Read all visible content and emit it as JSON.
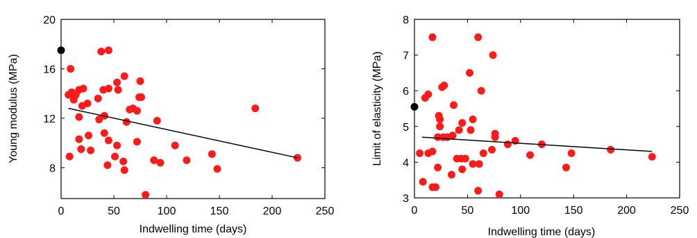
{
  "chart_data": [
    {
      "type": "scatter",
      "xlabel": "Indwelling time (days)",
      "ylabel": "Young modulus (MPa)",
      "xlim": [
        0,
        250
      ],
      "ylim": [
        5.5,
        20
      ],
      "xticks": [
        0,
        50,
        100,
        150,
        200,
        250
      ],
      "yticks": [
        8,
        12,
        16,
        20
      ],
      "grid": false,
      "colors": {
        "points": "#ff1a1a",
        "initial_point": "#000000",
        "trend": "#000000"
      },
      "initial_point": {
        "x": 0,
        "y": 17.5
      },
      "trend_line": {
        "x": [
          7,
          224
        ],
        "y": [
          12.8,
          8.8
        ]
      },
      "points": [
        {
          "x": 7,
          "y": 13.9
        },
        {
          "x": 10,
          "y": 14.1
        },
        {
          "x": 14,
          "y": 13.9
        },
        {
          "x": 17,
          "y": 14.3
        },
        {
          "x": 21,
          "y": 14.4
        },
        {
          "x": 12,
          "y": 13.5
        },
        {
          "x": 20,
          "y": 13.0
        },
        {
          "x": 25,
          "y": 13.2
        },
        {
          "x": 9,
          "y": 16.0
        },
        {
          "x": 35,
          "y": 13.6
        },
        {
          "x": 40,
          "y": 14.3
        },
        {
          "x": 45,
          "y": 14.4
        },
        {
          "x": 53,
          "y": 14.9
        },
        {
          "x": 54,
          "y": 14.3
        },
        {
          "x": 60,
          "y": 15.4
        },
        {
          "x": 75,
          "y": 15.0
        },
        {
          "x": 74,
          "y": 13.7
        },
        {
          "x": 76,
          "y": 13.7
        },
        {
          "x": 38,
          "y": 17.4
        },
        {
          "x": 45,
          "y": 17.5
        },
        {
          "x": 17,
          "y": 12.1
        },
        {
          "x": 41,
          "y": 12.2
        },
        {
          "x": 65,
          "y": 12.7
        },
        {
          "x": 68,
          "y": 12.8
        },
        {
          "x": 72,
          "y": 12.6
        },
        {
          "x": 62,
          "y": 11.7
        },
        {
          "x": 36,
          "y": 11.9
        },
        {
          "x": 91,
          "y": 11.8
        },
        {
          "x": 41,
          "y": 10.8
        },
        {
          "x": 17,
          "y": 10.3
        },
        {
          "x": 26,
          "y": 10.6
        },
        {
          "x": 45,
          "y": 10.2
        },
        {
          "x": 53,
          "y": 9.8
        },
        {
          "x": 72,
          "y": 10.1
        },
        {
          "x": 19,
          "y": 9.5
        },
        {
          "x": 28,
          "y": 9.4
        },
        {
          "x": 51,
          "y": 8.9
        },
        {
          "x": 8,
          "y": 8.9
        },
        {
          "x": 59,
          "y": 8.5
        },
        {
          "x": 88,
          "y": 8.6
        },
        {
          "x": 94,
          "y": 8.4
        },
        {
          "x": 44,
          "y": 8.2
        },
        {
          "x": 60,
          "y": 7.8
        },
        {
          "x": 108,
          "y": 9.8
        },
        {
          "x": 119,
          "y": 8.6
        },
        {
          "x": 143,
          "y": 9.1
        },
        {
          "x": 148,
          "y": 7.9
        },
        {
          "x": 184,
          "y": 12.8
        },
        {
          "x": 224,
          "y": 8.8
        },
        {
          "x": 80,
          "y": 5.8
        }
      ]
    },
    {
      "type": "scatter",
      "xlabel": "Indwelling time (days)",
      "ylabel": "Limit of elasticity (MPa)",
      "xlim": [
        0,
        250
      ],
      "ylim": [
        3,
        8
      ],
      "xticks": [
        0,
        50,
        100,
        150,
        200,
        250
      ],
      "yticks": [
        3,
        4,
        5,
        6,
        7,
        8
      ],
      "grid": false,
      "colors": {
        "points": "#ff1a1a",
        "initial_point": "#000000",
        "trend": "#000000"
      },
      "initial_point": {
        "x": 0,
        "y": 5.55
      },
      "trend_line": {
        "x": [
          7,
          224
        ],
        "y": [
          4.7,
          4.3
        ]
      },
      "points": [
        {
          "x": 17,
          "y": 7.5
        },
        {
          "x": 60,
          "y": 7.5
        },
        {
          "x": 74,
          "y": 7.0
        },
        {
          "x": 52,
          "y": 6.5
        },
        {
          "x": 26,
          "y": 6.1
        },
        {
          "x": 28,
          "y": 6.15
        },
        {
          "x": 13,
          "y": 5.9
        },
        {
          "x": 63,
          "y": 6.0
        },
        {
          "x": 10,
          "y": 5.8
        },
        {
          "x": 37,
          "y": 5.6
        },
        {
          "x": 23,
          "y": 5.3
        },
        {
          "x": 24,
          "y": 5.2
        },
        {
          "x": 24,
          "y": 5.0
        },
        {
          "x": 45,
          "y": 5.1
        },
        {
          "x": 55,
          "y": 5.2
        },
        {
          "x": 42,
          "y": 4.9
        },
        {
          "x": 53,
          "y": 4.9
        },
        {
          "x": 22,
          "y": 4.7
        },
        {
          "x": 27,
          "y": 4.7
        },
        {
          "x": 31,
          "y": 4.7
        },
        {
          "x": 36,
          "y": 4.75
        },
        {
          "x": 76,
          "y": 4.8
        },
        {
          "x": 76,
          "y": 4.7
        },
        {
          "x": 5,
          "y": 4.25
        },
        {
          "x": 13,
          "y": 4.25
        },
        {
          "x": 17,
          "y": 4.3
        },
        {
          "x": 40,
          "y": 4.1
        },
        {
          "x": 44,
          "y": 4.1
        },
        {
          "x": 48,
          "y": 4.1
        },
        {
          "x": 22,
          "y": 3.85
        },
        {
          "x": 35,
          "y": 3.65
        },
        {
          "x": 55,
          "y": 3.95
        },
        {
          "x": 61,
          "y": 3.95
        },
        {
          "x": 65,
          "y": 4.25
        },
        {
          "x": 73,
          "y": 4.35
        },
        {
          "x": 45,
          "y": 3.8
        },
        {
          "x": 88,
          "y": 4.5
        },
        {
          "x": 95,
          "y": 4.6
        },
        {
          "x": 8,
          "y": 3.45
        },
        {
          "x": 17,
          "y": 3.3
        },
        {
          "x": 20,
          "y": 3.3
        },
        {
          "x": 60,
          "y": 3.2
        },
        {
          "x": 80,
          "y": 3.1
        },
        {
          "x": 109,
          "y": 4.2
        },
        {
          "x": 120,
          "y": 4.5
        },
        {
          "x": 143,
          "y": 3.85
        },
        {
          "x": 148,
          "y": 4.25
        },
        {
          "x": 185,
          "y": 4.35
        },
        {
          "x": 224,
          "y": 4.15
        }
      ]
    }
  ]
}
